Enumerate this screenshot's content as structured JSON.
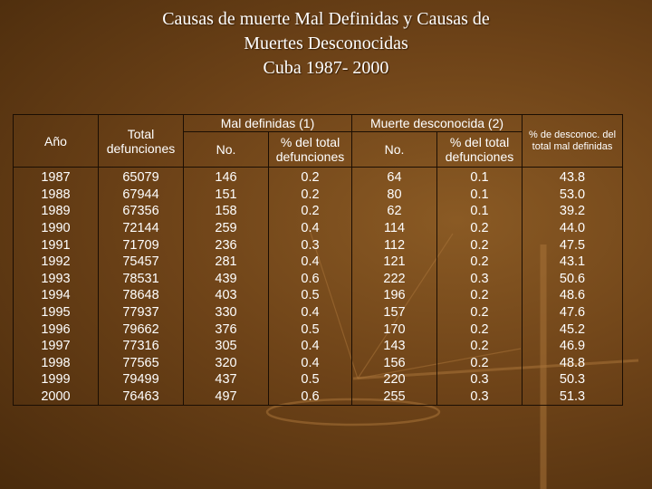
{
  "title": {
    "line1": "Causas de muerte Mal Definidas y Causas de",
    "line2": "Muertes Desconocidas",
    "line3": "Cuba 1987- 2000"
  },
  "headers": {
    "year": "Año",
    "total": "Total defunciones",
    "mal": "Mal definidas (1)",
    "muerte": "Muerte desconocida (2)",
    "pct_desconoc": "% de desconoc. del total mal definidas",
    "no": "No.",
    "pct_total": "% del total defunciones"
  },
  "rows": [
    [
      "1987",
      "65079",
      "146",
      "0.2",
      "64",
      "0.1",
      "43.8"
    ],
    [
      "1988",
      "67944",
      "151",
      "0.2",
      "80",
      "0.1",
      "53.0"
    ],
    [
      "1989",
      "67356",
      "158",
      "0.2",
      "62",
      "0.1",
      "39.2"
    ],
    [
      "1990",
      "72144",
      "259",
      "0.4",
      "114",
      "0.2",
      "44.0"
    ],
    [
      "1991",
      "71709",
      "236",
      "0.3",
      "112",
      "0.2",
      "47.5"
    ],
    [
      "1992",
      "75457",
      "281",
      "0.4",
      "121",
      "0.2",
      "43.1"
    ],
    [
      "1993",
      "78531",
      "439",
      "0.6",
      "222",
      "0.3",
      "50.6"
    ],
    [
      "1994",
      "78648",
      "403",
      "0.5",
      "196",
      "0.2",
      "48.6"
    ],
    [
      "1995",
      "77937",
      "330",
      "0.4",
      "157",
      "0.2",
      "47.6"
    ],
    [
      "1996",
      "79662",
      "376",
      "0.5",
      "170",
      "0.2",
      "45.2"
    ],
    [
      "1997",
      "77316",
      "305",
      "0.4",
      "143",
      "0.2",
      "46.9"
    ],
    [
      "1998",
      "77565",
      "320",
      "0.4",
      "156",
      "0.2",
      "48.8"
    ],
    [
      "1999",
      "79499",
      "437",
      "0.5",
      "220",
      "0.3",
      "50.3"
    ],
    [
      "2000",
      "76463",
      "497",
      "0.6",
      "255",
      "0.3",
      "51.3"
    ]
  ],
  "colors": {
    "background": "#6e4318",
    "text": "#ffffff",
    "grid": "#1b0e03"
  }
}
